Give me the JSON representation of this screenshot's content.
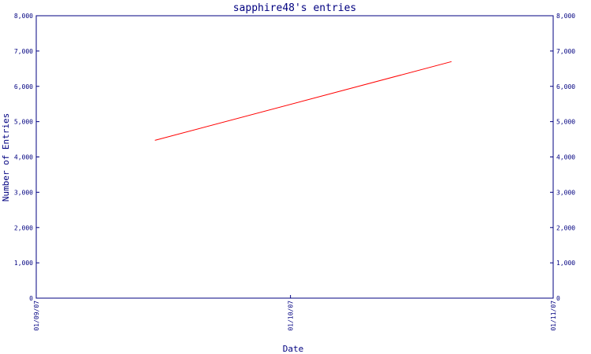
{
  "chart_data": {
    "type": "line",
    "title": "sapphire48's entries",
    "xlabel": "Date",
    "ylabel": "Number of Entries",
    "ylim": [
      0,
      8000
    ],
    "xlim": [
      "01/09/07",
      "01/11/07"
    ],
    "y_ticks": [
      "0",
      "1,000",
      "2,000",
      "3,000",
      "4,000",
      "5,000",
      "6,000",
      "7,000",
      "8,000"
    ],
    "x_ticks": [
      "01/09/07",
      "01/10/07",
      "01/11/07"
    ],
    "right_axis_mirror": true,
    "grid": false,
    "series": [
      {
        "x": [
          "2007-09-15",
          "2007-10-20"
        ],
        "y": [
          4470,
          6700
        ]
      }
    ]
  },
  "colors": {
    "axis": "#000080",
    "line": "#ff0000",
    "background": "#ffffff"
  }
}
